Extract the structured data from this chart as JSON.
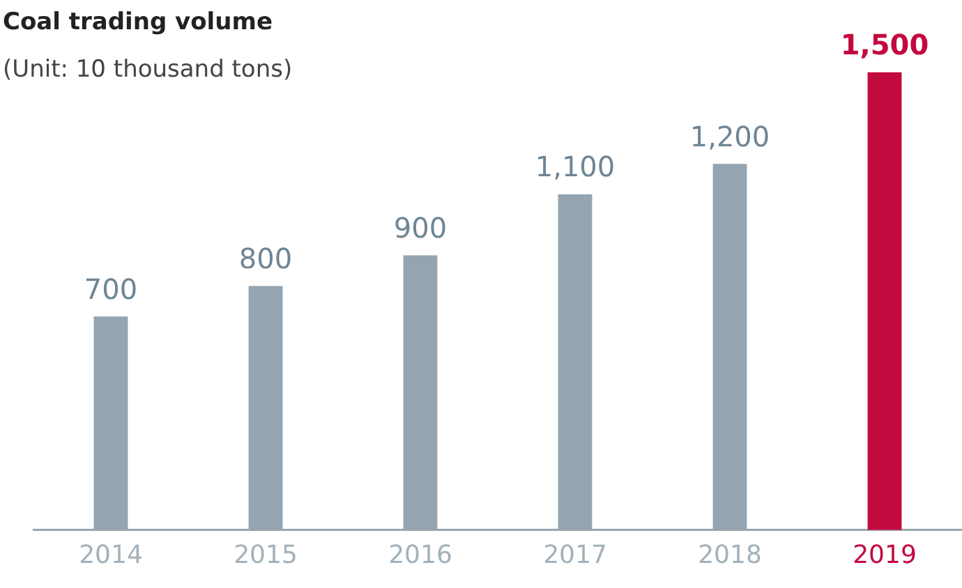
{
  "chart_data": {
    "type": "bar",
    "title": "Coal trading volume",
    "subtitle": "(Unit: 10 thousand tons)",
    "categories": [
      "2014",
      "2015",
      "2016",
      "2017",
      "2018",
      "2019"
    ],
    "values": [
      700,
      800,
      900,
      1100,
      1200,
      1500
    ],
    "colors": [
      "#94a4b0",
      "#94a4b0",
      "#94a4b0",
      "#94a4b0",
      "#94a4b0",
      "#c20a3f"
    ],
    "value_labels": [
      "700",
      "800",
      "900",
      "1,100",
      "1,200",
      "1,500"
    ],
    "grid": false,
    "legend": false
  }
}
